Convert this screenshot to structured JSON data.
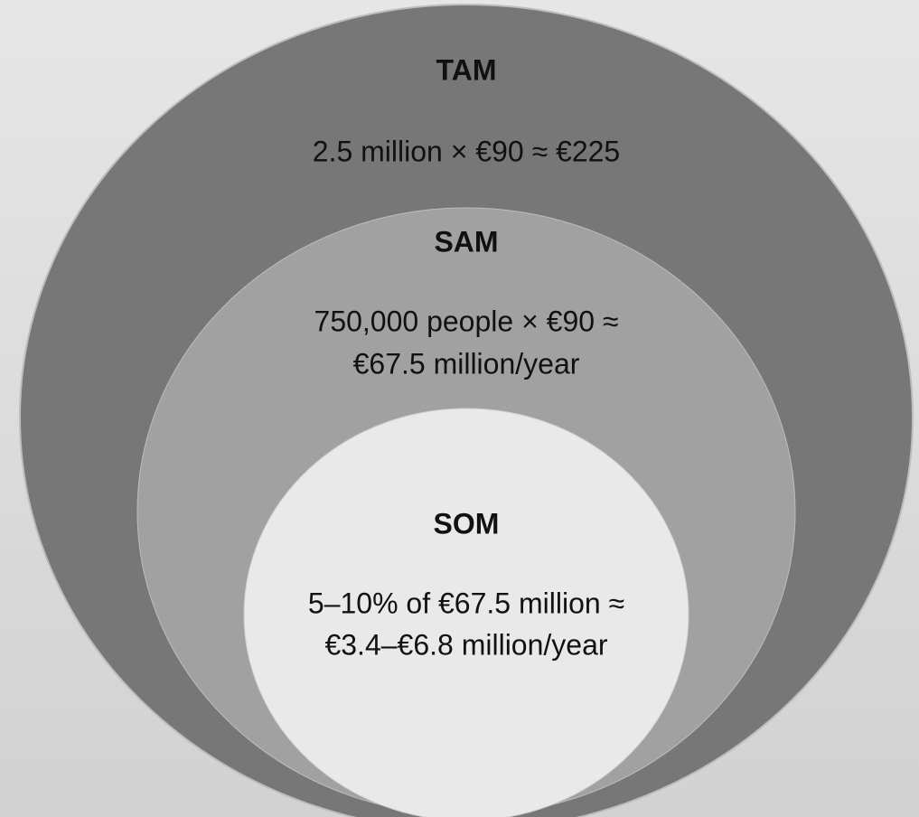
{
  "nodes": [
    {
      "label": "TAM",
      "description": [
        "2.5 million × €90 ≈ €225"
      ]
    },
    {
      "label": "SAM",
      "description": [
        "750,000 people × €90 ≈",
        "€67.5 million/year"
      ]
    },
    {
      "label": "SOM",
      "description": [
        "5–10% of €67.5 million ≈",
        "€3.4–€6.8 million/year"
      ]
    }
  ]
}
